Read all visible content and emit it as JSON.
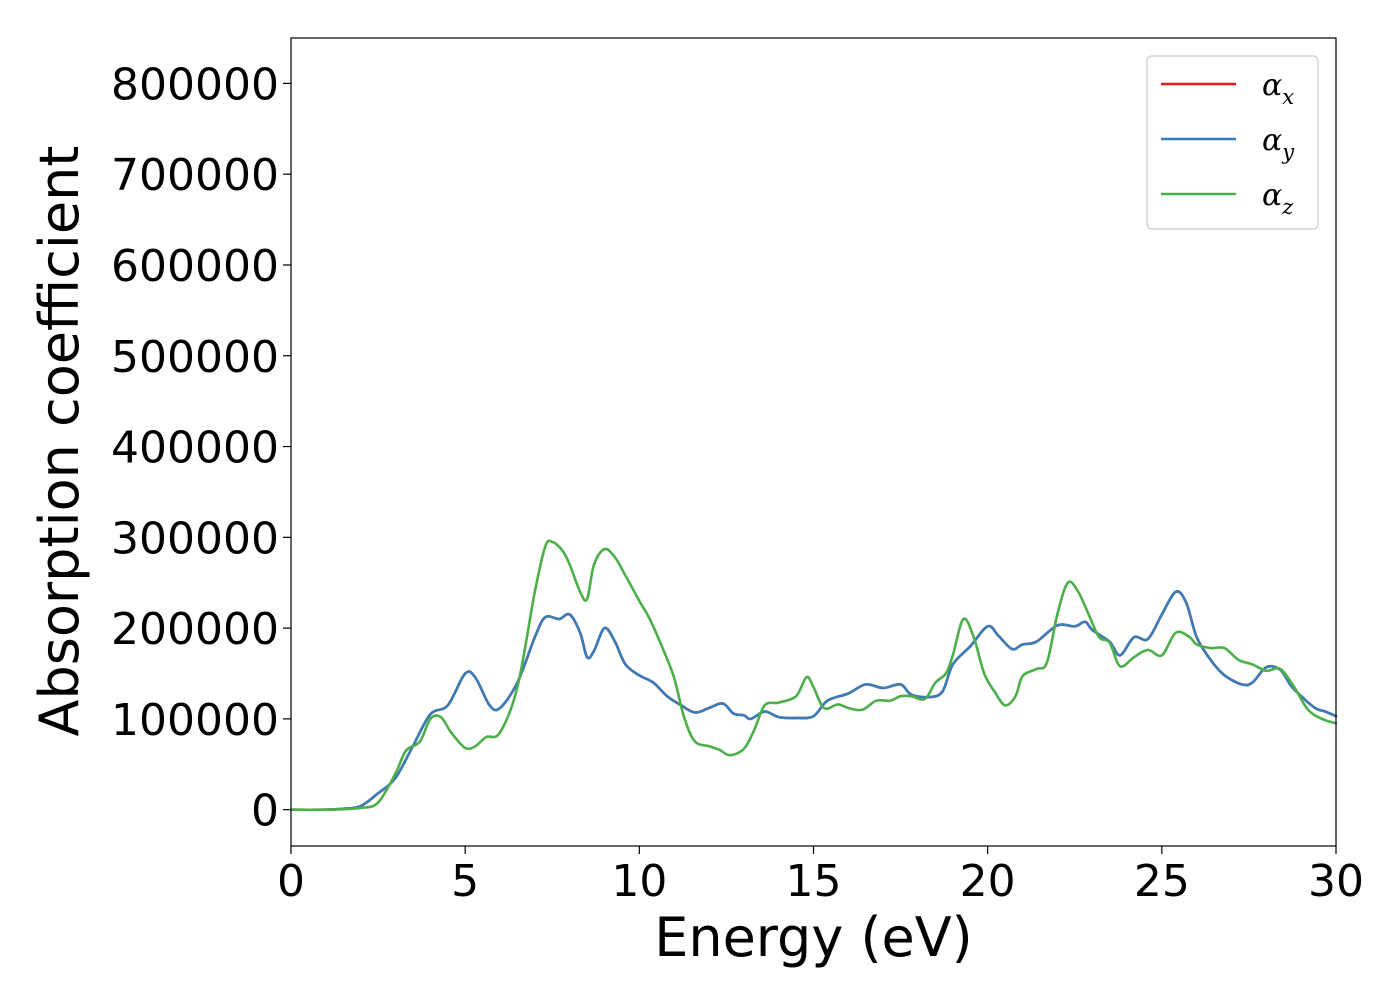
{
  "chart_data": {
    "type": "line",
    "title": "",
    "xlabel": "Energy (eV)",
    "ylabel": "Absorption coefficient",
    "xlim": [
      0,
      30
    ],
    "ylim": [
      -40000,
      850000
    ],
    "x_ticks": [
      0,
      5,
      10,
      15,
      20,
      25,
      30
    ],
    "y_ticks": [
      0,
      100000,
      200000,
      300000,
      400000,
      500000,
      600000,
      700000,
      800000
    ],
    "x_tick_labels": [
      "0",
      "5",
      "10",
      "15",
      "20",
      "25",
      "30"
    ],
    "y_tick_labels": [
      "0",
      "100000",
      "200000",
      "300000",
      "400000",
      "500000",
      "600000",
      "700000",
      "800000"
    ],
    "grid": false,
    "legend": {
      "position": "top-right",
      "entries": [
        {
          "base": "α",
          "sub": "x",
          "color": "#e41a1c"
        },
        {
          "base": "α",
          "sub": "y",
          "color": "#377eb8"
        },
        {
          "base": "α",
          "sub": "z",
          "color": "#4daf4a"
        }
      ]
    },
    "series": [
      {
        "name": "αx",
        "color": "#e41a1c",
        "points": [
          [
            0,
            0
          ],
          [
            1,
            0
          ],
          [
            1.5,
            1000
          ],
          [
            2,
            4000
          ],
          [
            2.5,
            18000
          ],
          [
            3,
            35000
          ],
          [
            3.5,
            70000
          ],
          [
            4,
            105000
          ],
          [
            4.5,
            115000
          ],
          [
            5,
            150000
          ],
          [
            5.3,
            145000
          ],
          [
            5.7,
            115000
          ],
          [
            6,
            112000
          ],
          [
            6.5,
            140000
          ],
          [
            7,
            190000
          ],
          [
            7.3,
            212000
          ],
          [
            7.7,
            210000
          ],
          [
            8,
            215000
          ],
          [
            8.3,
            195000
          ],
          [
            8.5,
            168000
          ],
          [
            8.7,
            175000
          ],
          [
            9,
            200000
          ],
          [
            9.3,
            185000
          ],
          [
            9.6,
            160000
          ],
          [
            10,
            148000
          ],
          [
            10.4,
            140000
          ],
          [
            10.8,
            125000
          ],
          [
            11.2,
            115000
          ],
          [
            11.6,
            107000
          ],
          [
            12,
            112000
          ],
          [
            12.4,
            117000
          ],
          [
            12.7,
            106000
          ],
          [
            13,
            104000
          ],
          [
            13.2,
            100000
          ],
          [
            13.6,
            108000
          ],
          [
            14,
            102000
          ],
          [
            14.5,
            101000
          ],
          [
            15,
            103000
          ],
          [
            15.4,
            120000
          ],
          [
            16,
            128000
          ],
          [
            16.5,
            138000
          ],
          [
            17,
            134000
          ],
          [
            17.5,
            138000
          ],
          [
            17.8,
            127000
          ],
          [
            18.3,
            124000
          ],
          [
            18.7,
            130000
          ],
          [
            19,
            160000
          ],
          [
            19.5,
            180000
          ],
          [
            20,
            202000
          ],
          [
            20.3,
            192000
          ],
          [
            20.7,
            177000
          ],
          [
            21,
            182000
          ],
          [
            21.4,
            185000
          ],
          [
            22,
            203000
          ],
          [
            22.5,
            202000
          ],
          [
            22.8,
            207000
          ],
          [
            23,
            198000
          ],
          [
            23.5,
            185000
          ],
          [
            23.8,
            170000
          ],
          [
            24.2,
            190000
          ],
          [
            24.6,
            188000
          ],
          [
            25,
            215000
          ],
          [
            25.4,
            240000
          ],
          [
            25.7,
            228000
          ],
          [
            26,
            190000
          ],
          [
            26.4,
            165000
          ],
          [
            26.8,
            148000
          ],
          [
            27.3,
            138000
          ],
          [
            27.6,
            140000
          ],
          [
            28,
            157000
          ],
          [
            28.4,
            154000
          ],
          [
            28.7,
            137000
          ],
          [
            29,
            125000
          ],
          [
            29.4,
            112000
          ],
          [
            29.7,
            108000
          ],
          [
            30,
            103000
          ]
        ]
      },
      {
        "name": "αy",
        "color": "#377eb8",
        "points": [
          [
            0,
            0
          ],
          [
            1,
            0
          ],
          [
            1.5,
            1000
          ],
          [
            2,
            4000
          ],
          [
            2.5,
            18000
          ],
          [
            3,
            35000
          ],
          [
            3.5,
            70000
          ],
          [
            4,
            105000
          ],
          [
            4.5,
            115000
          ],
          [
            5,
            150000
          ],
          [
            5.3,
            145000
          ],
          [
            5.7,
            115000
          ],
          [
            6,
            112000
          ],
          [
            6.5,
            140000
          ],
          [
            7,
            190000
          ],
          [
            7.3,
            212000
          ],
          [
            7.7,
            210000
          ],
          [
            8,
            215000
          ],
          [
            8.3,
            195000
          ],
          [
            8.5,
            168000
          ],
          [
            8.7,
            175000
          ],
          [
            9,
            200000
          ],
          [
            9.3,
            185000
          ],
          [
            9.6,
            160000
          ],
          [
            10,
            148000
          ],
          [
            10.4,
            140000
          ],
          [
            10.8,
            125000
          ],
          [
            11.2,
            115000
          ],
          [
            11.6,
            107000
          ],
          [
            12,
            112000
          ],
          [
            12.4,
            117000
          ],
          [
            12.7,
            106000
          ],
          [
            13,
            104000
          ],
          [
            13.2,
            100000
          ],
          [
            13.6,
            108000
          ],
          [
            14,
            102000
          ],
          [
            14.5,
            101000
          ],
          [
            15,
            103000
          ],
          [
            15.4,
            120000
          ],
          [
            16,
            128000
          ],
          [
            16.5,
            138000
          ],
          [
            17,
            134000
          ],
          [
            17.5,
            138000
          ],
          [
            17.8,
            127000
          ],
          [
            18.3,
            124000
          ],
          [
            18.7,
            130000
          ],
          [
            19,
            160000
          ],
          [
            19.5,
            180000
          ],
          [
            20,
            202000
          ],
          [
            20.3,
            192000
          ],
          [
            20.7,
            177000
          ],
          [
            21,
            182000
          ],
          [
            21.4,
            185000
          ],
          [
            22,
            203000
          ],
          [
            22.5,
            202000
          ],
          [
            22.8,
            207000
          ],
          [
            23,
            198000
          ],
          [
            23.5,
            185000
          ],
          [
            23.8,
            170000
          ],
          [
            24.2,
            190000
          ],
          [
            24.6,
            188000
          ],
          [
            25,
            215000
          ],
          [
            25.4,
            240000
          ],
          [
            25.7,
            228000
          ],
          [
            26,
            190000
          ],
          [
            26.4,
            165000
          ],
          [
            26.8,
            148000
          ],
          [
            27.3,
            138000
          ],
          [
            27.6,
            140000
          ],
          [
            28,
            157000
          ],
          [
            28.4,
            154000
          ],
          [
            28.7,
            137000
          ],
          [
            29,
            125000
          ],
          [
            29.4,
            112000
          ],
          [
            29.7,
            108000
          ],
          [
            30,
            103000
          ]
        ]
      },
      {
        "name": "αz",
        "color": "#4daf4a",
        "points": [
          [
            0,
            0
          ],
          [
            1,
            0
          ],
          [
            2,
            2000
          ],
          [
            2.5,
            8000
          ],
          [
            3,
            40000
          ],
          [
            3.3,
            65000
          ],
          [
            3.7,
            75000
          ],
          [
            4,
            100000
          ],
          [
            4.3,
            102000
          ],
          [
            4.6,
            85000
          ],
          [
            5,
            68000
          ],
          [
            5.3,
            70000
          ],
          [
            5.6,
            80000
          ],
          [
            6,
            85000
          ],
          [
            6.5,
            135000
          ],
          [
            7,
            240000
          ],
          [
            7.3,
            290000
          ],
          [
            7.5,
            295000
          ],
          [
            7.8,
            285000
          ],
          [
            8,
            270000
          ],
          [
            8.3,
            240000
          ],
          [
            8.5,
            232000
          ],
          [
            8.7,
            270000
          ],
          [
            9,
            287000
          ],
          [
            9.3,
            278000
          ],
          [
            9.6,
            258000
          ],
          [
            10,
            230000
          ],
          [
            10.3,
            210000
          ],
          [
            10.7,
            175000
          ],
          [
            11,
            145000
          ],
          [
            11.3,
            100000
          ],
          [
            11.6,
            75000
          ],
          [
            12,
            70000
          ],
          [
            12.3,
            66000
          ],
          [
            12.6,
            60000
          ],
          [
            13,
            67000
          ],
          [
            13.3,
            88000
          ],
          [
            13.6,
            115000
          ],
          [
            14,
            118000
          ],
          [
            14.5,
            125000
          ],
          [
            14.8,
            146000
          ],
          [
            15,
            135000
          ],
          [
            15.3,
            112000
          ],
          [
            15.7,
            116000
          ],
          [
            16,
            112000
          ],
          [
            16.4,
            110000
          ],
          [
            16.8,
            120000
          ],
          [
            17.2,
            120000
          ],
          [
            17.5,
            125000
          ],
          [
            17.8,
            125000
          ],
          [
            18.2,
            122000
          ],
          [
            18.5,
            140000
          ],
          [
            18.8,
            150000
          ],
          [
            19,
            170000
          ],
          [
            19.3,
            210000
          ],
          [
            19.6,
            190000
          ],
          [
            19.9,
            150000
          ],
          [
            20.2,
            130000
          ],
          [
            20.5,
            115000
          ],
          [
            20.8,
            125000
          ],
          [
            21,
            147000
          ],
          [
            21.4,
            155000
          ],
          [
            21.7,
            162000
          ],
          [
            22,
            215000
          ],
          [
            22.3,
            250000
          ],
          [
            22.6,
            240000
          ],
          [
            22.9,
            215000
          ],
          [
            23.2,
            190000
          ],
          [
            23.5,
            184000
          ],
          [
            23.8,
            158000
          ],
          [
            24.2,
            168000
          ],
          [
            24.6,
            176000
          ],
          [
            25,
            170000
          ],
          [
            25.4,
            195000
          ],
          [
            25.8,
            190000
          ],
          [
            26,
            182000
          ],
          [
            26.4,
            178000
          ],
          [
            26.8,
            178000
          ],
          [
            27.2,
            165000
          ],
          [
            27.6,
            160000
          ],
          [
            28,
            153000
          ],
          [
            28.4,
            155000
          ],
          [
            28.8,
            135000
          ],
          [
            29.2,
            110000
          ],
          [
            29.6,
            100000
          ],
          [
            30,
            95000
          ]
        ]
      }
    ]
  }
}
